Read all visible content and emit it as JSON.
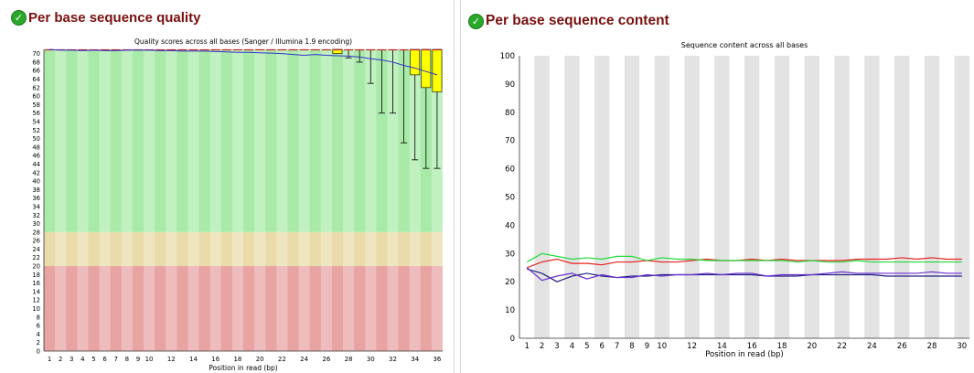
{
  "left_panel": {
    "heading": "Per base sequence quality",
    "status_icon": "check-icon"
  },
  "right_panel": {
    "heading": "Per base sequence content",
    "status_icon": "check-icon"
  },
  "chart_data": [
    {
      "type": "box",
      "title": "Quality scores across all bases (Sanger / Illumina 1.9 encoding)",
      "xlabel": "Position in read (bp)",
      "ylabel": "",
      "ylim": [
        0,
        71
      ],
      "y_ticks": [
        0,
        2,
        4,
        6,
        8,
        10,
        12,
        14,
        16,
        18,
        20,
        22,
        24,
        26,
        28,
        30,
        32,
        34,
        36,
        38,
        40,
        42,
        44,
        46,
        48,
        50,
        52,
        54,
        56,
        58,
        60,
        62,
        64,
        66,
        68,
        70
      ],
      "positions": [
        1,
        2,
        3,
        4,
        5,
        6,
        7,
        8,
        9,
        10,
        11,
        12,
        13,
        14,
        15,
        16,
        17,
        18,
        19,
        20,
        21,
        22,
        23,
        24,
        25,
        26,
        27,
        28,
        29,
        30,
        31,
        32,
        33,
        34,
        35,
        36
      ],
      "x_tick_labels": [
        "1",
        "2",
        "3",
        "4",
        "5",
        "6",
        "7",
        "8",
        "9",
        "10",
        "12",
        "14",
        "16",
        "18",
        "20",
        "22",
        "24",
        "26",
        "28",
        "30",
        "32",
        "34",
        "36"
      ],
      "background_bands": [
        {
          "from": 0,
          "to": 20,
          "color": "#e8a3a3"
        },
        {
          "from": 20,
          "to": 28,
          "color": "#e9dcaa"
        },
        {
          "from": 28,
          "to": 71,
          "color": "#a9eaa9"
        }
      ],
      "mean_line_color": "#3333cc",
      "box_color": "#ffff00",
      "median_color": "#cc2222",
      "series": [
        {
          "name": "mean",
          "values": [
            71,
            70.8,
            70.8,
            70.7,
            70.8,
            70.7,
            70.7,
            70.8,
            70.8,
            70.8,
            70.7,
            70.7,
            70.6,
            70.6,
            70.6,
            70.5,
            70.4,
            70.3,
            70.3,
            70.2,
            70.1,
            70.0,
            69.8,
            69.6,
            69.8,
            69.6,
            69.5,
            69.4,
            69.2,
            68.8,
            68.5,
            68.0,
            67.2,
            66.6,
            65.8,
            65.0
          ]
        }
      ],
      "boxes": [
        {
          "position": 27,
          "q1": 70,
          "q3": 71,
          "median": 71,
          "low": 70,
          "high": 71
        },
        {
          "position": 28,
          "q1": 71,
          "q3": 71,
          "median": 71,
          "low": 69,
          "high": 71
        },
        {
          "position": 29,
          "q1": 71,
          "q3": 71,
          "median": 71,
          "low": 68,
          "high": 71
        },
        {
          "position": 30,
          "q1": 71,
          "q3": 71,
          "median": 71,
          "low": 63,
          "high": 71
        },
        {
          "position": 31,
          "q1": 71,
          "q3": 71,
          "median": 71,
          "low": 56,
          "high": 71
        },
        {
          "position": 32,
          "q1": 71,
          "q3": 71,
          "median": 71,
          "low": 56,
          "high": 71
        },
        {
          "position": 33,
          "q1": 71,
          "q3": 71,
          "median": 71,
          "low": 49,
          "high": 71
        },
        {
          "position": 34,
          "q1": 65,
          "q3": 71,
          "median": 71,
          "low": 45,
          "high": 71
        },
        {
          "position": 35,
          "q1": 62,
          "q3": 71,
          "median": 71,
          "low": 43,
          "high": 71
        },
        {
          "position": 36,
          "q1": 61,
          "q3": 71,
          "median": 71,
          "low": 43,
          "high": 71
        }
      ]
    },
    {
      "type": "line",
      "title": "Sequence content across all bases",
      "xlabel": "Position in read (bp)",
      "ylabel": "",
      "ylim": [
        0,
        100
      ],
      "y_ticks": [
        0,
        10,
        20,
        30,
        40,
        50,
        60,
        70,
        80,
        90,
        100
      ],
      "positions": [
        1,
        2,
        3,
        4,
        5,
        6,
        7,
        8,
        9,
        10,
        11,
        12,
        13,
        14,
        15,
        16,
        17,
        18,
        19,
        20,
        21,
        22,
        23,
        24,
        25,
        26,
        27,
        28,
        29,
        30
      ],
      "x_tick_labels": [
        "1",
        "2",
        "3",
        "4",
        "5",
        "6",
        "7",
        "8",
        "9",
        "10",
        "12",
        "14",
        "16",
        "18",
        "20",
        "22",
        "24",
        "26",
        "28",
        "30"
      ],
      "series": [
        {
          "color": "#e62020",
          "values": [
            25,
            27,
            28,
            26.5,
            26.5,
            26,
            27,
            27,
            27.5,
            27,
            27,
            27.5,
            28,
            27.5,
            27.5,
            28,
            27.5,
            28,
            27.5,
            27.5,
            27.5,
            27.5,
            28,
            28,
            28,
            28.5,
            28,
            28.5,
            28,
            28
          ]
        },
        {
          "color": "#1fdc3a",
          "values": [
            27,
            30,
            29,
            28,
            28.5,
            28,
            29,
            29,
            27.5,
            28.5,
            28,
            28,
            27.5,
            27.5,
            27.5,
            27.5,
            27.5,
            27.5,
            27,
            27.5,
            27,
            27,
            27.5,
            27,
            27,
            27,
            27,
            27,
            27,
            27
          ]
        },
        {
          "color": "#202080",
          "values": [
            24.5,
            23,
            20,
            22,
            23,
            22,
            21.5,
            22,
            22,
            22.5,
            22.5,
            22.5,
            22.5,
            22.5,
            22.5,
            22.5,
            22,
            22,
            22,
            22.5,
            22.5,
            22.5,
            22.5,
            22.5,
            22,
            22,
            22,
            22,
            22,
            22
          ]
        },
        {
          "color": "#6a30d0",
          "values": [
            25,
            20.5,
            22,
            23,
            21,
            22.5,
            21.5,
            21.5,
            22.5,
            22,
            22.5,
            22.5,
            23,
            22.5,
            23,
            23,
            22,
            22.5,
            22.5,
            22.5,
            23,
            23.5,
            23,
            23,
            23,
            23,
            23,
            23.5,
            23,
            23
          ]
        }
      ]
    }
  ]
}
